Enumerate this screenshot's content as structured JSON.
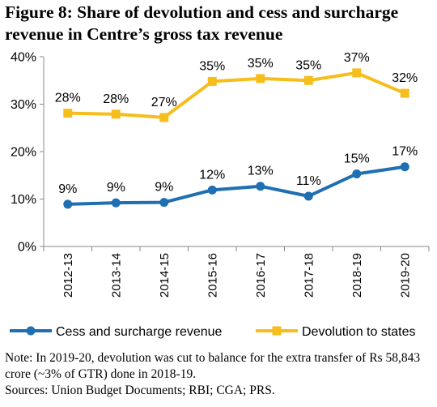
{
  "chart_data": {
    "type": "line",
    "title": "Figure 8:  Share of devolution and cess and surcharge revenue in Centre’s gross tax revenue",
    "categories": [
      "2012-13",
      "2013-14",
      "2014-15",
      "2015-16",
      "2016-17",
      "2017-18",
      "2018-19",
      "2019-20"
    ],
    "y_ticks": [
      "0%",
      "10%",
      "20%",
      "30%",
      "40%"
    ],
    "ylim": [
      0,
      40
    ],
    "grid": false,
    "legend_position": "bottom",
    "series": [
      {
        "name": "Cess and surcharge revenue",
        "color": "#1F6FB2",
        "marker": "circle",
        "values": [
          8.9,
          9.2,
          9.3,
          11.9,
          12.7,
          10.6,
          15.3,
          16.8
        ],
        "labels": [
          "9%",
          "9%",
          "9%",
          "12%",
          "13%",
          "11%",
          "15%",
          "17%"
        ]
      },
      {
        "name": "Devolution to states",
        "color": "#F5BE1C",
        "marker": "square",
        "values": [
          28.1,
          27.9,
          27.2,
          34.8,
          35.4,
          35.0,
          36.6,
          32.3
        ],
        "labels": [
          "28%",
          "28%",
          "27%",
          "35%",
          "35%",
          "35%",
          "37%",
          "32%"
        ]
      }
    ],
    "note": "Note:  In 2019-20, devolution was cut to balance for the extra transfer of Rs 58,843 crore (~3% of GTR) done in 2018-19.",
    "sources": "Sources:  Union Budget Documents; RBI; CGA; PRS."
  }
}
